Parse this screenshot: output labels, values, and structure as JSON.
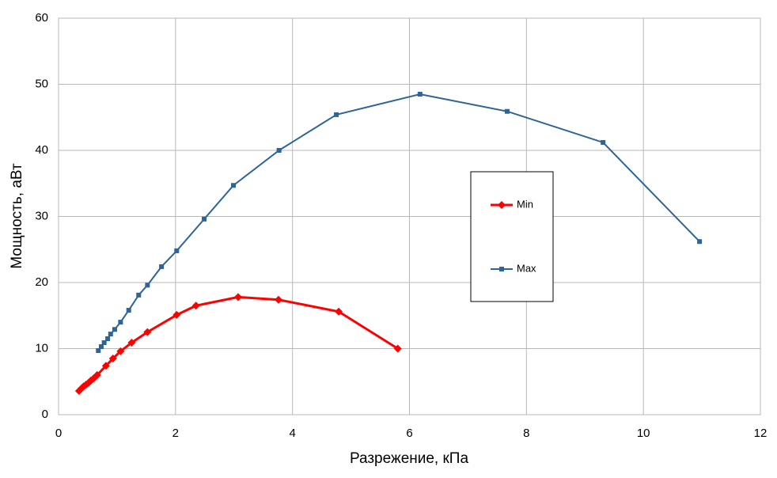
{
  "chart_data": {
    "type": "line",
    "xlabel": "Разрежение, кПа",
    "ylabel": "Мощность, аВт",
    "xlim": [
      0,
      12
    ],
    "xticks": [
      0,
      2,
      4,
      6,
      8,
      10,
      12
    ],
    "ylim": [
      0,
      60
    ],
    "yticks": [
      0,
      10,
      20,
      30,
      40,
      50,
      60
    ],
    "grid": true,
    "series": [
      {
        "name": "Min",
        "color": "#ff0000",
        "marker": "diamond",
        "x": [
          0.35,
          0.39,
          0.43,
          0.47,
          0.51,
          0.55,
          0.6,
          0.66,
          0.81,
          0.93,
          1.06,
          1.25,
          1.52,
          2.02,
          2.35,
          3.07,
          3.76,
          4.79,
          5.8
        ],
        "values": [
          3.6,
          3.95,
          4.3,
          4.55,
          4.8,
          5.15,
          5.5,
          6.0,
          7.4,
          8.5,
          9.6,
          10.9,
          12.5,
          15.1,
          16.5,
          17.8,
          17.4,
          15.6,
          10.0
        ]
      },
      {
        "name": "Max",
        "color": "#2e6496",
        "marker": "square",
        "x": [
          0.68,
          0.73,
          0.78,
          0.84,
          0.89,
          0.96,
          1.06,
          1.2,
          1.37,
          1.52,
          1.76,
          2.02,
          2.49,
          2.99,
          3.77,
          4.75,
          6.18,
          7.67,
          9.31,
          10.96
        ],
        "values": [
          9.7,
          10.3,
          10.9,
          11.5,
          12.2,
          12.9,
          14.0,
          15.8,
          18.1,
          19.6,
          22.4,
          24.8,
          29.6,
          34.7,
          40.0,
          45.4,
          48.5,
          45.9,
          41.2,
          26.2
        ]
      }
    ]
  }
}
